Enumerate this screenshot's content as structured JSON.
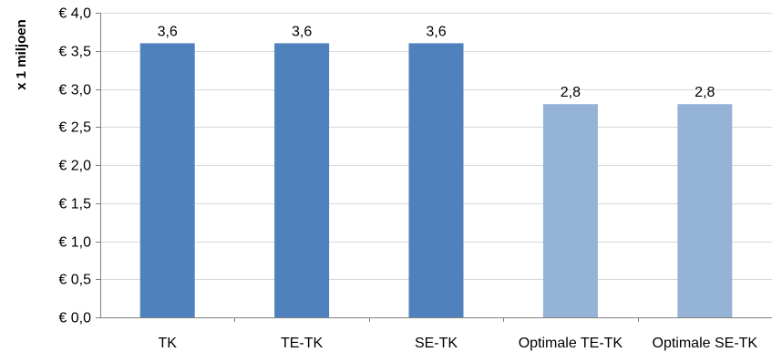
{
  "chart_data": {
    "type": "bar",
    "title": "",
    "xlabel": "",
    "ylabel": "x 1 miljoen",
    "categories": [
      "TK",
      "TE-TK",
      "SE-TK",
      "Optimale TE-TK",
      "Optimale SE-TK"
    ],
    "values": [
      3.6,
      3.6,
      3.6,
      2.8,
      2.8
    ],
    "data_labels": [
      "3,6",
      "3,6",
      "3,6",
      "2,8",
      "2,8"
    ],
    "ylim": [
      0,
      4.0
    ],
    "y_ticks": [
      0,
      0.5,
      1.0,
      1.5,
      2.0,
      2.5,
      3.0,
      3.5,
      4.0
    ],
    "y_tick_labels": [
      "€ 0,0",
      "€ 0,5",
      "€ 1,0",
      "€ 1,5",
      "€ 2,0",
      "€ 2,5",
      "€ 3,0",
      "€ 3,5",
      "€ 4,0"
    ],
    "grid": true,
    "legend": "none",
    "bar_colors": [
      "#4F81BD",
      "#4F81BD",
      "#4F81BD",
      "#95B3D7",
      "#95B3D7"
    ],
    "grid_color": "#D9D9D9",
    "axis_color": "#808080"
  }
}
